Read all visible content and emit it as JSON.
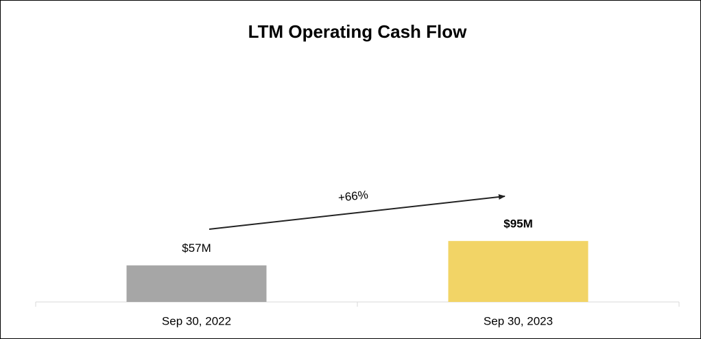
{
  "chart_data": {
    "type": "bar",
    "title": "LTM Operating Cash Flow",
    "categories": [
      "Sep 30, 2022",
      "Sep 30, 2023"
    ],
    "values": [
      57,
      95
    ],
    "value_labels": [
      "$57M",
      "$95M"
    ],
    "colors": [
      "#a6a6a6",
      "#f2d466"
    ],
    "annotation": "+66%"
  }
}
